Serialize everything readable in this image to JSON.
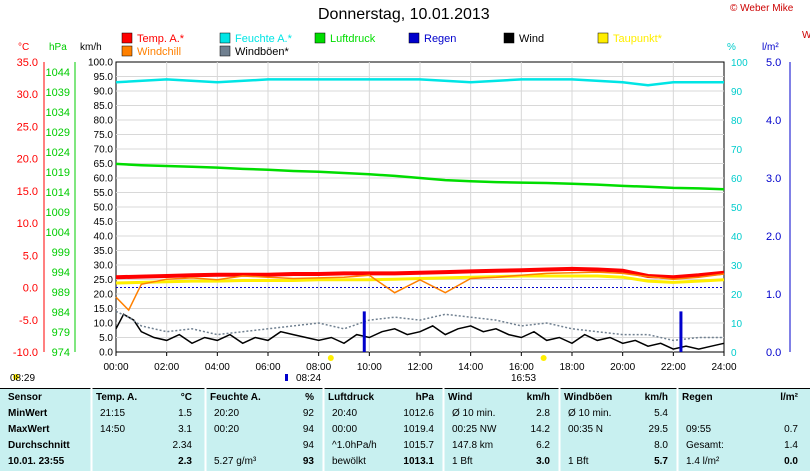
{
  "header": {
    "title": "Donnerstag, 10.01.2013",
    "copyright": "© Weber Mike",
    "right_edge_label": "W"
  },
  "legend": [
    {
      "label": "Temp. A.*",
      "color": "#ff0000"
    },
    {
      "label": "Feuchte A.*",
      "color": "#00e5e5"
    },
    {
      "label": "Luftdruck",
      "color": "#00dd00"
    },
    {
      "label": "Regen",
      "color": "#0000cc"
    },
    {
      "label": "Wind",
      "color": "#000000"
    },
    {
      "label": "Taupunkt*",
      "color": "#ffee00"
    },
    {
      "label": "Windchill",
      "color": "#ff8000"
    },
    {
      "label": "Windböen*",
      "color": "#708090"
    }
  ],
  "axes": {
    "temp_unit": "°C",
    "hpa_unit": "hPa",
    "kmh_unit": "km/h",
    "pct_unit": "%",
    "rain_unit": "l/m²",
    "temp_ticks": [
      "35.0",
      "30.0",
      "25.0",
      "20.0",
      "15.0",
      "10.0",
      "5.0",
      "0.0",
      "-5.0",
      "-10.0"
    ],
    "hpa_ticks": [
      "1044",
      "1039",
      "1034",
      "1029",
      "1024",
      "1019",
      "1014",
      "1009",
      "1004",
      "999",
      "994",
      "989",
      "984",
      "979",
      "974"
    ],
    "kmh_ticks": [
      "100.0",
      "95.0",
      "90.0",
      "85.0",
      "80.0",
      "75.0",
      "70.0",
      "65.0",
      "60.0",
      "55.0",
      "50.0",
      "45.0",
      "40.0",
      "35.0",
      "30.0",
      "25.0",
      "20.0",
      "15.0",
      "10.0",
      "5.0",
      "0.0"
    ],
    "pct_ticks": [
      "100",
      "90",
      "80",
      "70",
      "60",
      "50",
      "40",
      "30",
      "20",
      "10",
      "0"
    ],
    "rain_ticks": [
      "5.0",
      "4.0",
      "3.0",
      "2.0",
      "1.0",
      "0.0"
    ],
    "x_ticks": [
      "00:00",
      "02:00",
      "04:00",
      "06:00",
      "08:00",
      "10:00",
      "12:00",
      "14:00",
      "16:00",
      "18:00",
      "20:00",
      "22:00",
      "24:00"
    ],
    "sun_markers": {
      "sunrise": "08:29",
      "sunset": "16:53",
      "moon": "08:24"
    }
  },
  "chart_data": {
    "type": "line",
    "title": "Donnerstag, 10.01.2013",
    "x_unit": "hours",
    "xlim": [
      0,
      24
    ],
    "series": [
      {
        "name": "Temp. A.*",
        "axis": "temp",
        "color": "#ff0000",
        "x": [
          0,
          1,
          2,
          3,
          4,
          5,
          6,
          7,
          8,
          9,
          10,
          11,
          12,
          13,
          14,
          15,
          16,
          17,
          18,
          19,
          20,
          21,
          22,
          23,
          24
        ],
        "y": [
          1.6,
          1.7,
          1.8,
          1.9,
          2.0,
          2.0,
          2.0,
          2.1,
          2.1,
          2.2,
          2.2,
          2.2,
          2.3,
          2.4,
          2.5,
          2.6,
          2.7,
          2.8,
          2.9,
          2.8,
          2.6,
          1.8,
          1.6,
          1.9,
          2.3
        ]
      },
      {
        "name": "Taupunkt*",
        "axis": "temp",
        "color": "#ffee00",
        "x": [
          0,
          1,
          2,
          3,
          4,
          5,
          6,
          7,
          8,
          9,
          10,
          11,
          12,
          13,
          14,
          15,
          16,
          17,
          18,
          19,
          20,
          21,
          22,
          23,
          24
        ],
        "y": [
          0.7,
          0.8,
          0.9,
          1.0,
          1.0,
          1.1,
          1.1,
          1.1,
          1.2,
          1.2,
          1.2,
          1.3,
          1.4,
          1.5,
          1.6,
          1.7,
          1.8,
          1.8,
          1.8,
          1.8,
          1.6,
          1.0,
          0.8,
          1.0,
          1.2
        ]
      },
      {
        "name": "Windchill",
        "axis": "temp",
        "color": "#ff8000",
        "x": [
          0,
          0.5,
          1,
          2,
          3,
          4,
          5,
          6,
          7,
          8,
          9,
          10,
          11,
          12,
          13,
          14,
          15,
          16,
          17,
          18,
          19,
          20,
          21,
          22,
          23,
          24
        ],
        "y": [
          -1.5,
          -3.5,
          0.5,
          1.3,
          1.5,
          1.2,
          1.8,
          1.6,
          1.4,
          1.5,
          1.6,
          1.9,
          -0.8,
          1.2,
          -0.8,
          1.4,
          1.6,
          1.9,
          2.2,
          2.3,
          2.4,
          2.2,
          1.7,
          1.3,
          1.6,
          2.1
        ]
      },
      {
        "name": "Feuchte A.*",
        "axis": "pct",
        "color": "#00e5e5",
        "x": [
          0,
          2,
          4,
          6,
          8,
          10,
          12,
          14,
          16,
          18,
          20,
          21,
          22,
          23,
          24
        ],
        "y": [
          93,
          94,
          93,
          94,
          94,
          94,
          94,
          93,
          94,
          94,
          93,
          92,
          93,
          93,
          93
        ]
      },
      {
        "name": "Luftdruck",
        "axis": "hpa",
        "color": "#00dd00",
        "x": [
          0,
          1,
          2,
          3,
          4,
          5,
          6,
          7,
          8,
          9,
          10,
          11,
          12,
          13,
          14,
          15,
          16,
          17,
          18,
          19,
          20,
          21,
          22,
          23,
          24
        ],
        "y": [
          1019.4,
          1019.1,
          1018.9,
          1018.7,
          1018.5,
          1018.2,
          1018.0,
          1017.7,
          1017.5,
          1017.2,
          1016.9,
          1016.5,
          1016.0,
          1015.5,
          1015.2,
          1015.0,
          1014.9,
          1014.8,
          1014.6,
          1014.4,
          1014.1,
          1013.9,
          1013.6,
          1013.5,
          1013.3
        ]
      },
      {
        "name": "Wind",
        "axis": "kmh",
        "color": "#000000",
        "x": [
          0,
          0.3,
          0.7,
          1,
          1.5,
          2,
          2.5,
          3,
          3.5,
          4,
          4.5,
          5,
          5.5,
          6,
          6.5,
          7,
          7.5,
          8,
          8.5,
          9,
          9.5,
          10,
          10.5,
          11,
          11.5,
          12,
          12.5,
          13,
          13.5,
          14,
          14.5,
          15,
          15.5,
          16,
          16.5,
          17,
          17.5,
          18,
          18.5,
          19,
          19.5,
          20,
          20.5,
          21,
          21.5,
          22,
          22.5,
          23,
          23.5,
          24
        ],
        "y": [
          8,
          13,
          11,
          7,
          5,
          4,
          6,
          3,
          5,
          4,
          6,
          3,
          5,
          4,
          7,
          6,
          5,
          4,
          5,
          3,
          6,
          5,
          7,
          8,
          6,
          7,
          9,
          6,
          8,
          9,
          7,
          8,
          6,
          5,
          7,
          4,
          5,
          3,
          6,
          4,
          5,
          3,
          4,
          2,
          3,
          1,
          2,
          1,
          2,
          3
        ]
      },
      {
        "name": "Windböen*",
        "axis": "kmh",
        "color": "#708090",
        "x": [
          0,
          0.5,
          1,
          2,
          3,
          4,
          5,
          6,
          7,
          8,
          9,
          10,
          11,
          12,
          13,
          14,
          15,
          16,
          17,
          18,
          19,
          20,
          21,
          22,
          23,
          24
        ],
        "y": [
          14,
          12,
          9,
          7,
          8,
          6,
          7,
          8,
          9,
          10,
          8,
          11,
          12,
          11,
          13,
          12,
          11,
          9,
          10,
          8,
          7,
          6,
          6,
          4,
          5,
          5
        ]
      },
      {
        "name": "Regen",
        "axis": "rain",
        "color": "#0000cc",
        "type": "bar",
        "x": [
          9.8,
          22.3
        ],
        "y": [
          0.7,
          0.7
        ]
      }
    ],
    "reference_line": {
      "axis": "temp",
      "value": 0.0,
      "color": "#0000cc",
      "style": "dotted"
    },
    "ylims": {
      "temp": [
        -10,
        35
      ],
      "hpa": [
        974,
        1044
      ],
      "kmh": [
        0,
        100
      ],
      "pct": [
        0,
        100
      ],
      "rain": [
        0,
        5
      ]
    }
  },
  "table": {
    "row_labels": [
      "Sensor",
      "MinWert",
      "MaxWert",
      "Durchschnitt",
      "10.01. 23:55"
    ],
    "cols": [
      {
        "hdr": "Temp. A.",
        "unit": "°C",
        "cells": [
          [
            "21:15",
            "1.5"
          ],
          [
            "14:50",
            "3.1"
          ],
          [
            "",
            "2.34"
          ],
          [
            "",
            "2.3"
          ]
        ]
      },
      {
        "hdr": "Feuchte A.",
        "unit": "%",
        "cells": [
          [
            "20:20",
            "92"
          ],
          [
            "00:20",
            "94"
          ],
          [
            "",
            "94"
          ],
          [
            "5.27 g/m³",
            "93"
          ]
        ]
      },
      {
        "hdr": "Luftdruck",
        "unit": "hPa",
        "cells": [
          [
            "20:40",
            "1012.6"
          ],
          [
            "00:00",
            "1019.4"
          ],
          [
            "^1.0hPa/h",
            "1015.7"
          ],
          [
            "bewölkt",
            "1013.1"
          ]
        ]
      },
      {
        "hdr": "Wind",
        "unit": "km/h",
        "cells": [
          [
            "Ø 10 min.",
            "2.8"
          ],
          [
            "00:25   NW",
            "14.2"
          ],
          [
            "147.8 km",
            "6.2"
          ],
          [
            "1 Bft",
            "3.0"
          ]
        ]
      },
      {
        "hdr": "Windböen",
        "unit": "km/h",
        "cells": [
          [
            "Ø 10 min.",
            "5.4"
          ],
          [
            "00:35   N",
            "29.5"
          ],
          [
            "",
            "8.0"
          ],
          [
            "1 Bft",
            "5.7"
          ]
        ]
      },
      {
        "hdr": "Regen",
        "unit": "l/m²",
        "cells": [
          [
            "",
            ""
          ],
          [
            "09:55",
            "0.7"
          ],
          [
            "Gesamt:",
            "1.4"
          ],
          [
            "1.4 l/m²",
            "0.0"
          ]
        ]
      }
    ]
  },
  "colors": {
    "table_bg": "#c8f0f0",
    "temp_axis": "#ff0000",
    "hpa_axis": "#00cc00",
    "pct_axis": "#00cccc",
    "rain_axis": "#0000cc"
  }
}
